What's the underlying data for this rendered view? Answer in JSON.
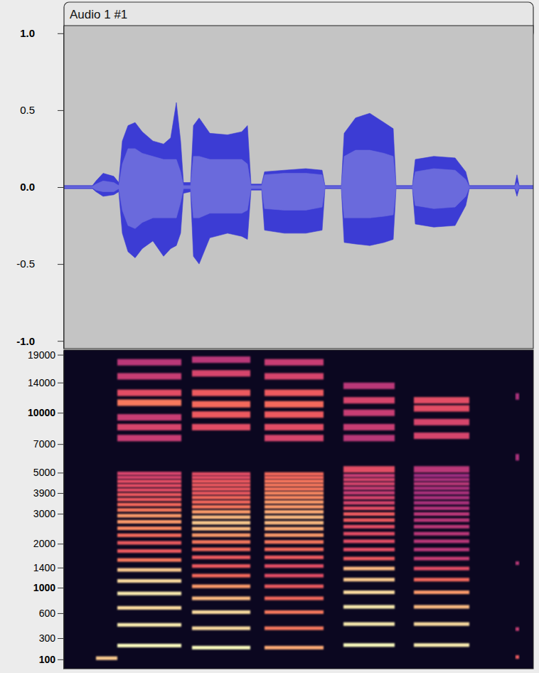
{
  "chart_data": [
    {
      "type": "area",
      "title": "Audio 1 #1",
      "x": [
        0,
        4,
        4.5,
        5.5,
        7,
        7.7,
        8.2,
        9,
        10,
        11,
        12.5,
        14,
        15,
        15.8,
        16.4,
        16.8,
        17.8,
        18.2,
        19,
        20.5,
        23,
        25,
        25.8,
        26.3,
        27.8,
        28.2,
        31,
        34,
        36.3,
        36.7,
        39,
        39.4,
        41,
        43,
        45,
        46.3,
        46.7,
        49,
        49.4,
        52,
        55,
        56.5,
        57,
        63.4,
        63.7,
        64,
        66
      ],
      "xlim": [
        0,
        66
      ],
      "ylim": [
        -1.05,
        1.05
      ],
      "yticks": [
        {
          "value": 1,
          "label": "1.0"
        },
        0.5,
        {
          "value": 0,
          "label": "0.0"
        },
        -0.5,
        {
          "value": -1,
          "label": "-1.0"
        }
      ],
      "tick_labels": "y",
      "series": [
        {
          "color": "#3c3cd4",
          "values": [
            0.01,
            0.01,
            0.04,
            0.09,
            0.07,
            0.03,
            0.3,
            0.4,
            0.42,
            0.36,
            0.3,
            0.28,
            0.32,
            0.55,
            0.3,
            0.03,
            0.03,
            0.4,
            0.45,
            0.35,
            0.34,
            0.36,
            0.4,
            0.02,
            0.02,
            0.1,
            0.11,
            0.12,
            0.11,
            0.01,
            0.01,
            0.35,
            0.45,
            0.48,
            0.42,
            0.38,
            0.01,
            0.01,
            0.18,
            0.2,
            0.19,
            0.1,
            0.01,
            0.01,
            0.08,
            0.01,
            0.01
          ],
          "lower": [
            -0.01,
            -0.01,
            -0.03,
            -0.06,
            -0.05,
            -0.03,
            -0.3,
            -0.42,
            -0.46,
            -0.4,
            -0.35,
            -0.45,
            -0.4,
            -0.38,
            -0.3,
            -0.04,
            -0.03,
            -0.45,
            -0.5,
            -0.33,
            -0.3,
            -0.32,
            -0.34,
            -0.02,
            -0.02,
            -0.28,
            -0.3,
            -0.3,
            -0.28,
            -0.01,
            -0.01,
            -0.36,
            -0.37,
            -0.38,
            -0.36,
            -0.34,
            -0.01,
            -0.01,
            -0.24,
            -0.26,
            -0.25,
            -0.12,
            -0.01,
            -0.01,
            -0.06,
            -0.01,
            -0.01
          ]
        },
        {
          "color": "#6a6adc",
          "values": [
            0.005,
            0.005,
            0.02,
            0.04,
            0.03,
            0.01,
            0.15,
            0.25,
            0.25,
            0.22,
            0.2,
            0.18,
            0.18,
            0.18,
            0.1,
            0.01,
            0.01,
            0.2,
            0.2,
            0.18,
            0.18,
            0.18,
            0.15,
            0.01,
            0.01,
            0.08,
            0.09,
            0.09,
            0.08,
            0.005,
            0.005,
            0.2,
            0.24,
            0.24,
            0.22,
            0.2,
            0.005,
            0.005,
            0.1,
            0.12,
            0.11,
            0.05,
            0.005,
            0.005,
            0.03,
            0.005,
            0.005
          ],
          "lower": [
            -0.005,
            -0.005,
            -0.02,
            -0.03,
            -0.03,
            -0.01,
            -0.15,
            -0.25,
            -0.27,
            -0.23,
            -0.2,
            -0.2,
            -0.2,
            -0.2,
            -0.1,
            -0.01,
            -0.01,
            -0.2,
            -0.2,
            -0.17,
            -0.17,
            -0.17,
            -0.15,
            -0.01,
            -0.01,
            -0.14,
            -0.15,
            -0.15,
            -0.13,
            -0.005,
            -0.005,
            -0.2,
            -0.2,
            -0.2,
            -0.19,
            -0.18,
            -0.005,
            -0.005,
            -0.12,
            -0.14,
            -0.13,
            -0.06,
            -0.005,
            -0.005,
            -0.03,
            -0.005,
            -0.005
          ]
        }
      ]
    },
    {
      "type": "spectrogram",
      "xlim": [
        0,
        66
      ],
      "ylim": [
        25,
        20000
      ],
      "yticks": [
        100,
        300,
        600,
        1000,
        1400,
        2000,
        3000,
        3900,
        5000,
        7000,
        10000,
        14000,
        19000
      ],
      "tick_labels": "y",
      "segments": [
        {
          "start": 4.5,
          "end": 7.5,
          "harmonics": [
            110
          ],
          "levels": [
            0.85
          ]
        },
        {
          "start": 7.5,
          "end": 16.5,
          "harmonics": [
            225,
            450,
            675,
            900,
            1125,
            1350,
            1575,
            1800,
            2025,
            2250,
            2475,
            2700,
            2925,
            3150,
            3375,
            3600,
            3825,
            4050,
            4275,
            4500,
            4725,
            4950,
            7500,
            8500,
            9500,
            11200,
            12500,
            15000,
            17500
          ],
          "levels": [
            1,
            0.95,
            0.9,
            0.95,
            0.9,
            0.85,
            0.6,
            0.5,
            0.5,
            0.55,
            0.65,
            0.7,
            0.7,
            0.6,
            0.55,
            0.5,
            0.5,
            0.45,
            0.45,
            0.45,
            0.4,
            0.4,
            0.35,
            0.4,
            0.35,
            0.6,
            0.45,
            0.35,
            0.3
          ]
        },
        {
          "start": 18,
          "end": 26.2,
          "harmonics": [
            205,
            410,
            615,
            820,
            1025,
            1230,
            1435,
            1640,
            1845,
            2050,
            2255,
            2460,
            2665,
            2870,
            3075,
            3280,
            3485,
            3690,
            3895,
            4100,
            4305,
            4510,
            4715,
            4920,
            8500,
            9800,
            11000,
            12500,
            15500,
            18000
          ],
          "levels": [
            1,
            0.9,
            0.9,
            0.8,
            0.7,
            0.55,
            0.5,
            0.5,
            0.55,
            0.6,
            0.7,
            0.8,
            0.85,
            0.8,
            0.7,
            0.6,
            0.55,
            0.55,
            0.5,
            0.5,
            0.5,
            0.5,
            0.45,
            0.45,
            0.45,
            0.5,
            0.55,
            0.5,
            0.4,
            0.3
          ]
        },
        {
          "start": 28.2,
          "end": 36.5,
          "harmonics": [
            205,
            410,
            615,
            820,
            1025,
            1230,
            1435,
            1640,
            1845,
            2050,
            2255,
            2460,
            2665,
            2870,
            3075,
            3280,
            3485,
            3690,
            3895,
            4100,
            4305,
            4510,
            4715,
            4920,
            7500,
            8500,
            9800,
            11000,
            12500,
            15000,
            17500
          ],
          "levels": [
            0.75,
            0.6,
            0.6,
            0.55,
            0.5,
            0.45,
            0.45,
            0.5,
            0.55,
            0.6,
            0.7,
            0.75,
            0.8,
            0.8,
            0.75,
            0.7,
            0.7,
            0.65,
            0.65,
            0.6,
            0.6,
            0.6,
            0.55,
            0.55,
            0.4,
            0.45,
            0.5,
            0.55,
            0.5,
            0.4,
            0.35
          ]
        },
        {
          "start": 39.3,
          "end": 46.5,
          "harmonics": [
            230,
            460,
            690,
            920,
            1150,
            1380,
            1610,
            1840,
            2070,
            2300,
            2530,
            2760,
            2990,
            3220,
            3450,
            3680,
            3910,
            4140,
            4370,
            4600,
            4830,
            5200,
            7500,
            8500,
            10000,
            11500,
            13500
          ],
          "levels": [
            1,
            0.95,
            0.95,
            0.9,
            0.85,
            0.8,
            0.5,
            0.45,
            0.45,
            0.45,
            0.45,
            0.5,
            0.5,
            0.45,
            0.4,
            0.4,
            0.35,
            0.35,
            0.4,
            0.4,
            0.35,
            0.45,
            0.3,
            0.35,
            0.35,
            0.4,
            0.3
          ]
        },
        {
          "start": 49.2,
          "end": 57,
          "harmonics": [
            230,
            460,
            690,
            920,
            1150,
            1380,
            1610,
            1840,
            2070,
            2300,
            2530,
            2760,
            2990,
            3220,
            3450,
            3680,
            3910,
            4140,
            4370,
            4600,
            4830,
            5200,
            7700,
            9000,
            10500,
            11500
          ],
          "levels": [
            0.95,
            0.9,
            0.8,
            0.7,
            0.55,
            0.45,
            0.35,
            0.3,
            0.3,
            0.3,
            0.3,
            0.3,
            0.3,
            0.28,
            0.25,
            0.25,
            0.25,
            0.25,
            0.3,
            0.25,
            0.2,
            0.3,
            0.4,
            0.4,
            0.45,
            0.45
          ]
        },
        {
          "start": 63.5,
          "end": 64,
          "harmonics": [
            120,
            400,
            1500,
            6000,
            12000
          ],
          "levels": [
            0.5,
            0.35,
            0.3,
            0.25,
            0.25
          ]
        }
      ]
    }
  ]
}
